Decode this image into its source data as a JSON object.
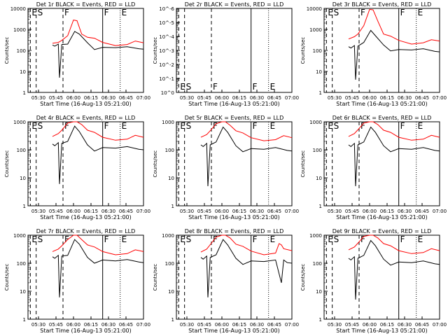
{
  "chart_data": {
    "type": "line",
    "log_scale_y": true,
    "grid": false,
    "series_colors": {
      "events": "#000000",
      "lld": "#ff0000"
    },
    "xlabel": "Start Time (16-Aug-13 05:21:00)",
    "ylabel": "Counts/sec",
    "xlim": [
      "05:21",
      "07:00"
    ],
    "x_ticks": [
      "05:30",
      "05:45",
      "06:00",
      "06:15",
      "06:30",
      "06:45",
      "07:00"
    ],
    "y_tick_labels_standard": [
      "1",
      "10",
      "100",
      "1000",
      "10000"
    ],
    "y_tick_labels_det2": [
      "10^0",
      "10^-1",
      "10^-2",
      "10^-3",
      "10^-4",
      "10^-5",
      "10^-6"
    ],
    "markers": [
      {
        "label": "E",
        "time": "05:23",
        "style": "dashed"
      },
      {
        "label": "S",
        "time": "05:28",
        "style": "dashed"
      },
      {
        "label": "F",
        "time": "05:51",
        "style": "dashed"
      },
      {
        "label": "F",
        "time": "06:25",
        "style": "solid"
      },
      {
        "label": "E",
        "time": "06:40",
        "style": "dotted"
      }
    ],
    "panels": [
      {
        "title": "Det 1r  BLACK = Events, RED = LLD",
        "ytop": "10000",
        "events": [
          [
            21,
            180
          ],
          [
            23,
            160
          ],
          [
            26,
            200
          ],
          [
            27,
            5
          ],
          [
            29,
            190
          ],
          [
            34,
            200
          ],
          [
            40,
            800
          ],
          [
            44,
            600
          ],
          [
            51,
            230
          ],
          [
            57,
            110
          ],
          [
            64,
            140
          ],
          [
            75,
            135
          ],
          [
            85,
            150
          ],
          [
            95,
            120
          ],
          [
            99,
            115
          ]
        ],
        "lld": [
          [
            21,
            220
          ],
          [
            26,
            240
          ],
          [
            29,
            300
          ],
          [
            34,
            500
          ],
          [
            39,
            2800
          ],
          [
            42,
            2600
          ],
          [
            46,
            600
          ],
          [
            51,
            420
          ],
          [
            57,
            380
          ],
          [
            64,
            240
          ],
          [
            75,
            170
          ],
          [
            85,
            190
          ],
          [
            92,
            280
          ],
          [
            99,
            230
          ]
        ]
      },
      {
        "title": "Det 2r  BLACK = Events, RED = LLD",
        "ytop": "10^0",
        "events": [],
        "lld": []
      },
      {
        "title": "Det 3r  BLACK = Events, RED = LLD",
        "ytop": "10000",
        "events": [
          [
            21,
            150
          ],
          [
            23,
            130
          ],
          [
            26,
            170
          ],
          [
            27,
            4
          ],
          [
            29,
            160
          ],
          [
            34,
            240
          ],
          [
            40,
            900
          ],
          [
            44,
            500
          ],
          [
            51,
            180
          ],
          [
            57,
            95
          ],
          [
            64,
            110
          ],
          [
            75,
            105
          ],
          [
            85,
            120
          ],
          [
            95,
            90
          ],
          [
            99,
            85
          ]
        ],
        "lld": [
          [
            21,
            350
          ],
          [
            26,
            450
          ],
          [
            29,
            600
          ],
          [
            34,
            1500
          ],
          [
            39,
            9000
          ],
          [
            42,
            8500
          ],
          [
            46,
            2500
          ],
          [
            51,
            600
          ],
          [
            57,
            480
          ],
          [
            64,
            300
          ],
          [
            75,
            200
          ],
          [
            85,
            230
          ],
          [
            92,
            320
          ],
          [
            99,
            280
          ]
        ]
      },
      {
        "title": "Det 4r  BLACK = Events, RED = LLD",
        "ytop": "1000",
        "events": [
          [
            21,
            160
          ],
          [
            23,
            140
          ],
          [
            26,
            180
          ],
          [
            27,
            6
          ],
          [
            29,
            170
          ],
          [
            34,
            200
          ],
          [
            40,
            700
          ],
          [
            44,
            450
          ],
          [
            51,
            150
          ],
          [
            57,
            90
          ],
          [
            64,
            120
          ],
          [
            75,
            115
          ],
          [
            85,
            130
          ],
          [
            95,
            105
          ],
          [
            99,
            100
          ]
        ],
        "lld": [
          [
            21,
            300
          ],
          [
            26,
            380
          ],
          [
            29,
            500
          ],
          [
            34,
            900
          ],
          [
            39,
            2000
          ],
          [
            42,
            1800
          ],
          [
            46,
            800
          ],
          [
            51,
            500
          ],
          [
            57,
            420
          ],
          [
            64,
            280
          ],
          [
            75,
            220
          ],
          [
            85,
            240
          ],
          [
            92,
            330
          ],
          [
            99,
            280
          ]
        ]
      },
      {
        "title": "Det 5r  BLACK = Events, RED = LLD",
        "ytop": "1000",
        "events": [
          [
            21,
            150
          ],
          [
            23,
            130
          ],
          [
            26,
            170
          ],
          [
            27,
            5
          ],
          [
            29,
            150
          ],
          [
            34,
            190
          ],
          [
            40,
            650
          ],
          [
            44,
            420
          ],
          [
            51,
            140
          ],
          [
            57,
            85
          ],
          [
            64,
            110
          ],
          [
            75,
            105
          ],
          [
            85,
            120
          ],
          [
            95,
            95
          ],
          [
            99,
            90
          ]
        ],
        "lld": [
          [
            21,
            280
          ],
          [
            26,
            350
          ],
          [
            29,
            480
          ],
          [
            34,
            850
          ],
          [
            39,
            1900
          ],
          [
            42,
            1700
          ],
          [
            46,
            750
          ],
          [
            51,
            480
          ],
          [
            57,
            400
          ],
          [
            64,
            270
          ],
          [
            75,
            210
          ],
          [
            85,
            230
          ],
          [
            92,
            320
          ],
          [
            99,
            270
          ]
        ]
      },
      {
        "title": "Det 6r  BLACK = Events, RED = LLD",
        "ytop": "1000",
        "events": [
          [
            21,
            150
          ],
          [
            23,
            130
          ],
          [
            26,
            170
          ],
          [
            27,
            5
          ],
          [
            29,
            150
          ],
          [
            34,
            190
          ],
          [
            40,
            650
          ],
          [
            44,
            420
          ],
          [
            51,
            140
          ],
          [
            57,
            85
          ],
          [
            64,
            110
          ],
          [
            75,
            105
          ],
          [
            85,
            120
          ],
          [
            95,
            95
          ],
          [
            99,
            90
          ]
        ],
        "lld": [
          [
            21,
            300
          ],
          [
            26,
            380
          ],
          [
            29,
            520
          ],
          [
            34,
            900
          ],
          [
            39,
            2100
          ],
          [
            42,
            1900
          ],
          [
            46,
            800
          ],
          [
            51,
            500
          ],
          [
            57,
            420
          ],
          [
            64,
            280
          ],
          [
            75,
            220
          ],
          [
            85,
            240
          ],
          [
            92,
            330
          ],
          [
            99,
            280
          ]
        ]
      },
      {
        "title": "Det 7r  BLACK = Events, RED = LLD",
        "ytop": "1000",
        "events": [
          [
            21,
            170
          ],
          [
            23,
            150
          ],
          [
            26,
            190
          ],
          [
            27,
            6
          ],
          [
            29,
            180
          ],
          [
            34,
            190
          ],
          [
            40,
            700
          ],
          [
            44,
            480
          ],
          [
            51,
            160
          ],
          [
            57,
            100
          ],
          [
            64,
            130
          ],
          [
            75,
            120
          ],
          [
            85,
            135
          ],
          [
            95,
            110
          ],
          [
            99,
            105
          ]
        ],
        "lld": [
          [
            21,
            260
          ],
          [
            26,
            320
          ],
          [
            29,
            420
          ],
          [
            34,
            700
          ],
          [
            39,
            1600
          ],
          [
            42,
            1500
          ],
          [
            46,
            700
          ],
          [
            51,
            450
          ],
          [
            57,
            380
          ],
          [
            64,
            260
          ],
          [
            75,
            200
          ],
          [
            85,
            220
          ],
          [
            92,
            300
          ],
          [
            99,
            260
          ]
        ]
      },
      {
        "title": "Det 8r  BLACK = Events, RED = LLD",
        "ytop": "1000",
        "events": [
          [
            21,
            160
          ],
          [
            23,
            140
          ],
          [
            26,
            180
          ],
          [
            27,
            6
          ],
          [
            29,
            160
          ],
          [
            34,
            200
          ],
          [
            40,
            700
          ],
          [
            44,
            450
          ],
          [
            51,
            150
          ],
          [
            57,
            90
          ],
          [
            64,
            120
          ],
          [
            75,
            115
          ],
          [
            85,
            130
          ],
          [
            90,
            20
          ],
          [
            92,
            130
          ],
          [
            95,
            105
          ],
          [
            99,
            100
          ]
        ],
        "lld": [
          [
            21,
            250
          ],
          [
            26,
            320
          ],
          [
            29,
            460
          ],
          [
            34,
            850
          ],
          [
            39,
            2200
          ],
          [
            42,
            2000
          ],
          [
            46,
            800
          ],
          [
            51,
            480
          ],
          [
            57,
            400
          ],
          [
            64,
            270
          ],
          [
            75,
            200
          ],
          [
            85,
            230
          ],
          [
            88,
            500
          ],
          [
            90,
            450
          ],
          [
            92,
            330
          ],
          [
            99,
            280
          ]
        ]
      },
      {
        "title": "Det 9r  BLACK = Events, RED = LLD",
        "ytop": "1000",
        "events": [
          [
            21,
            150
          ],
          [
            23,
            130
          ],
          [
            26,
            170
          ],
          [
            27,
            5
          ],
          [
            29,
            150
          ],
          [
            34,
            190
          ],
          [
            40,
            650
          ],
          [
            44,
            420
          ],
          [
            51,
            140
          ],
          [
            57,
            85
          ],
          [
            64,
            110
          ],
          [
            75,
            105
          ],
          [
            85,
            120
          ],
          [
            95,
            95
          ],
          [
            99,
            90
          ]
        ],
        "lld": [
          [
            21,
            300
          ],
          [
            26,
            380
          ],
          [
            29,
            520
          ],
          [
            34,
            900
          ],
          [
            39,
            2100
          ],
          [
            42,
            1900
          ],
          [
            46,
            800
          ],
          [
            51,
            500
          ],
          [
            57,
            420
          ],
          [
            64,
            280
          ],
          [
            75,
            220
          ],
          [
            85,
            240
          ],
          [
            92,
            330
          ],
          [
            99,
            280
          ]
        ]
      }
    ]
  }
}
